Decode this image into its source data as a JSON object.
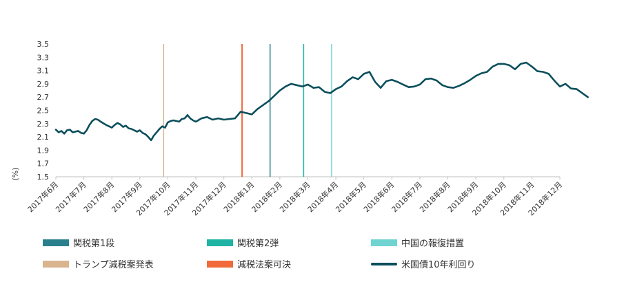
{
  "chart_data": {
    "type": "line",
    "ylabel": "(%)",
    "ylim": [
      1.5,
      3.5
    ],
    "yticks": [
      "3.5",
      "3.3",
      "3.1",
      "2.9",
      "2.7",
      "2.5",
      "2.3",
      "2.1",
      "1.9",
      "1.7",
      "1.5"
    ],
    "xticks": [
      "2017年6月",
      "2017年7月",
      "2017年8月",
      "2017年9月",
      "2017年10月",
      "2017年11月",
      "2017年12月",
      "2018年1月",
      "2018年2月",
      "2018年3月",
      "2018年4月",
      "2018年5月",
      "2018年6月",
      "2018年7月",
      "2018年8月",
      "2018年9月",
      "2018年10月",
      "2018年11月",
      "2018年12月"
    ],
    "grid": false,
    "series": [
      {
        "name": "米国債10年利回り",
        "color": "#0b4f5c",
        "x": [
          0,
          0.1,
          0.2,
          0.3,
          0.4,
          0.5,
          0.6,
          0.8,
          0.9,
          1.0,
          1.1,
          1.2,
          1.3,
          1.4,
          1.5,
          1.6,
          1.8,
          1.9,
          2.0,
          2.1,
          2.2,
          2.3,
          2.4,
          2.5,
          2.6,
          2.7,
          2.8,
          2.9,
          3.0,
          3.1,
          3.2,
          3.3,
          3.4,
          3.5,
          3.6,
          3.7,
          3.8,
          3.9,
          4.0,
          4.1,
          4.2,
          4.3,
          4.4,
          4.5,
          4.6,
          4.7,
          4.8,
          4.9,
          5.0,
          5.2,
          5.4,
          5.6,
          5.8,
          6.0,
          6.2,
          6.4,
          6.6,
          6.8,
          7.0,
          7.2,
          7.4,
          7.6,
          7.8,
          8.0,
          8.2,
          8.4,
          8.6,
          8.8,
          9.0,
          9.2,
          9.4,
          9.6,
          9.8,
          10.0,
          10.2,
          10.4,
          10.6,
          10.8,
          11.0,
          11.2,
          11.4,
          11.6,
          11.8,
          12.0,
          12.2,
          12.4,
          12.6,
          12.8,
          13.0,
          13.2,
          13.4,
          13.6,
          13.8,
          14.0,
          14.2,
          14.4,
          14.6,
          14.8,
          15.0,
          15.2,
          15.4,
          15.6,
          15.8,
          16.0,
          16.2,
          16.4,
          16.6,
          16.8,
          17.0,
          17.2,
          17.4,
          17.6,
          17.8,
          18.0,
          18.2,
          18.4,
          18.6,
          18.8,
          19.0
        ],
        "values": [
          2.21,
          2.17,
          2.19,
          2.15,
          2.2,
          2.21,
          2.17,
          2.19,
          2.16,
          2.15,
          2.2,
          2.28,
          2.34,
          2.37,
          2.36,
          2.33,
          2.28,
          2.26,
          2.24,
          2.28,
          2.31,
          2.29,
          2.25,
          2.27,
          2.23,
          2.22,
          2.2,
          2.18,
          2.2,
          2.16,
          2.14,
          2.1,
          2.05,
          2.12,
          2.17,
          2.22,
          2.26,
          2.24,
          2.32,
          2.34,
          2.35,
          2.34,
          2.33,
          2.37,
          2.38,
          2.43,
          2.38,
          2.35,
          2.33,
          2.38,
          2.4,
          2.36,
          2.38,
          2.36,
          2.37,
          2.38,
          2.48,
          2.46,
          2.44,
          2.52,
          2.58,
          2.64,
          2.72,
          2.8,
          2.86,
          2.9,
          2.88,
          2.86,
          2.89,
          2.84,
          2.85,
          2.78,
          2.76,
          2.82,
          2.86,
          2.94,
          3.0,
          2.97,
          3.05,
          3.08,
          2.93,
          2.84,
          2.94,
          2.96,
          2.93,
          2.89,
          2.85,
          2.86,
          2.89,
          2.97,
          2.98,
          2.95,
          2.88,
          2.85,
          2.84,
          2.87,
          2.91,
          2.96,
          3.02,
          3.06,
          3.08,
          3.16,
          3.2,
          3.2,
          3.18,
          3.12,
          3.2,
          3.22,
          3.16,
          3.09,
          3.08,
          3.05,
          2.95,
          2.86,
          2.9,
          2.83,
          2.82,
          2.76,
          2.7
        ]
      }
    ],
    "events": [
      {
        "name": "トランプ減税案発表",
        "x": 3.85,
        "color": "#d9b48f"
      },
      {
        "name": "減税法案可決",
        "x": 6.65,
        "color": "#f06a3b"
      },
      {
        "name": "関税第1段",
        "x": 7.65,
        "color": "#2a7f8c"
      },
      {
        "name": "関税第2弾",
        "x": 8.85,
        "color": "#1fb3a3"
      },
      {
        "name": "中国の報復措置",
        "x": 9.85,
        "color": "#6fd4d0"
      }
    ]
  },
  "legend": [
    {
      "label": "関税第1段",
      "color": "#2a7f8c",
      "kind": "bar"
    },
    {
      "label": "関税第2弾",
      "color": "#1fb3a3",
      "kind": "bar"
    },
    {
      "label": "中国の報復措置",
      "color": "#6fd4d0",
      "kind": "bar"
    },
    {
      "label": "トランプ減税案発表",
      "color": "#d9b48f",
      "kind": "bar"
    },
    {
      "label": "減税法案可決",
      "color": "#f06a3b",
      "kind": "bar"
    },
    {
      "label": "米国債10年利回り",
      "color": "#0b4f5c",
      "kind": "line"
    }
  ]
}
